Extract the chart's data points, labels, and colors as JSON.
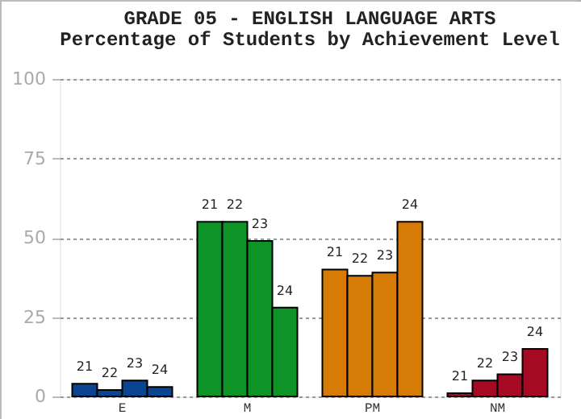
{
  "chart_data": {
    "type": "bar",
    "title": "GRADE 05 - ENGLISH LANGUAGE ARTS",
    "subtitle": "Percentage of Students by Achievement Level",
    "categories": [
      "E",
      "M",
      "PM",
      "NM"
    ],
    "series": [
      {
        "name": "21",
        "colors": [
          "#0b4592",
          "#0e9426",
          "#d67c06",
          "#a50a22"
        ],
        "values": [
          4,
          55,
          40,
          1
        ]
      },
      {
        "name": "22",
        "colors": [
          "#0b4592",
          "#0e9426",
          "#d67c06",
          "#a50a22"
        ],
        "values": [
          2,
          55,
          38,
          5
        ]
      },
      {
        "name": "23",
        "colors": [
          "#0b4592",
          "#0e9426",
          "#d67c06",
          "#a50a22"
        ],
        "values": [
          5,
          49,
          39,
          7
        ]
      },
      {
        "name": "24",
        "colors": [
          "#0b4592",
          "#0e9426",
          "#d67c06",
          "#a50a22"
        ],
        "values": [
          3,
          28,
          55,
          15
        ]
      }
    ],
    "ylim": [
      0,
      100
    ],
    "yticks": [
      0,
      25,
      50,
      75,
      100
    ],
    "grid": "y"
  }
}
